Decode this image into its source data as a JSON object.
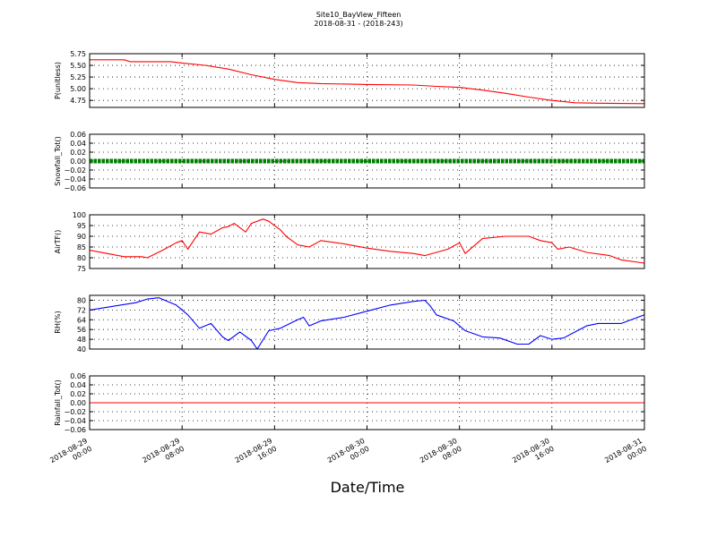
{
  "title": "Site10_BayView_Fifteen",
  "subtitle": "2018-08-31 - (2018-243)",
  "xlabel": "Date/Time",
  "x_ticks": [
    {
      "line1": "2018-08-29",
      "line2": "00:00"
    },
    {
      "line1": "2018-08-29",
      "line2": "08:00"
    },
    {
      "line1": "2018-08-29",
      "line2": "16:00"
    },
    {
      "line1": "2018-08-30",
      "line2": "00:00"
    },
    {
      "line1": "2018-08-30",
      "line2": "08:00"
    },
    {
      "line1": "2018-08-30",
      "line2": "16:00"
    },
    {
      "line1": "2018-08-31",
      "line2": "00:00"
    }
  ],
  "chart_data": [
    {
      "type": "line",
      "ylabel": "P(unitless)",
      "color": "#ff0000",
      "xlim": [
        "2018-08-29 00:00",
        "2018-08-31 00:00"
      ],
      "ylim": [
        4.6,
        5.75
      ],
      "yticks": [
        "5.75",
        "5.50",
        "5.25",
        "5.00",
        "4.75"
      ],
      "ytick_values": [
        5.75,
        5.5,
        5.25,
        5.0,
        4.75
      ],
      "grid": true,
      "series": [
        {
          "x": [
            "2018-08-29 00:00",
            "2018-08-29 03:00",
            "2018-08-29 03:30",
            "2018-08-29 07:00",
            "2018-08-29 08:00",
            "2018-08-29 10:00",
            "2018-08-29 12:00",
            "2018-08-29 14:00",
            "2018-08-29 16:00",
            "2018-08-29 18:00",
            "2018-08-29 20:00",
            "2018-08-30 00:00",
            "2018-08-30 04:00",
            "2018-08-30 06:00",
            "2018-08-30 08:00",
            "2018-08-30 10:00",
            "2018-08-30 12:00",
            "2018-08-30 14:00",
            "2018-08-30 16:00",
            "2018-08-30 18:00",
            "2018-08-30 20:00",
            "2018-08-31 00:00"
          ],
          "y": [
            5.62,
            5.62,
            5.58,
            5.58,
            5.55,
            5.5,
            5.42,
            5.3,
            5.2,
            5.13,
            5.11,
            5.09,
            5.08,
            5.05,
            5.03,
            4.97,
            4.9,
            4.82,
            4.75,
            4.7,
            4.69,
            4.68
          ]
        }
      ]
    },
    {
      "type": "line",
      "ylabel": "Snowfall_Tot()",
      "color": "#007f00",
      "xlim": [
        "2018-08-29 00:00",
        "2018-08-31 00:00"
      ],
      "ylim": [
        -0.06,
        0.06
      ],
      "yticks": [
        "0.06",
        "0.04",
        "0.02",
        "0.00",
        "−0.02",
        "−0.04",
        "−0.06"
      ],
      "ytick_values": [
        0.06,
        0.04,
        0.02,
        0.0,
        -0.02,
        -0.04,
        -0.06
      ],
      "grid": true,
      "marker": "dots",
      "series": [
        {
          "x": [
            "2018-08-29 00:00",
            "2018-08-31 00:00"
          ],
          "y": [
            0.0,
            0.0
          ]
        }
      ]
    },
    {
      "type": "line",
      "ylabel": "AirTF()",
      "color": "#ff0000",
      "xlim": [
        "2018-08-29 00:00",
        "2018-08-31 00:00"
      ],
      "ylim": [
        75,
        100
      ],
      "yticks": [
        "100",
        "95",
        "90",
        "85",
        "80",
        "75"
      ],
      "ytick_values": [
        100,
        95,
        90,
        85,
        80,
        75
      ],
      "grid": true,
      "series": [
        {
          "x": [
            "2018-08-29 00:00",
            "2018-08-29 01:30",
            "2018-08-29 03:00",
            "2018-08-29 04:30",
            "2018-08-29 05:00",
            "2018-08-29 06:30",
            "2018-08-29 07:30",
            "2018-08-29 08:00",
            "2018-08-29 08:30",
            "2018-08-29 09:30",
            "2018-08-29 10:30",
            "2018-08-29 11:30",
            "2018-08-29 12:00",
            "2018-08-29 12:30",
            "2018-08-29 13:30",
            "2018-08-29 14:00",
            "2018-08-29 15:00",
            "2018-08-29 15:30",
            "2018-08-29 16:30",
            "2018-08-29 17:00",
            "2018-08-29 17:30",
            "2018-08-29 18:00",
            "2018-08-29 19:00",
            "2018-08-29 20:00",
            "2018-08-29 22:00",
            "2018-08-30 00:00",
            "2018-08-30 02:00",
            "2018-08-30 04:00",
            "2018-08-30 05:00",
            "2018-08-30 07:00",
            "2018-08-30 08:00",
            "2018-08-30 08:30",
            "2018-08-30 10:00",
            "2018-08-30 12:00",
            "2018-08-30 14:00",
            "2018-08-30 15:00",
            "2018-08-30 16:00",
            "2018-08-30 16:30",
            "2018-08-30 17:30",
            "2018-08-30 19:00",
            "2018-08-30 21:00",
            "2018-08-30 22:00",
            "2018-08-31 00:00"
          ],
          "y": [
            83.5,
            82,
            80.5,
            80.5,
            80,
            84,
            87,
            88,
            84,
            92,
            91,
            94,
            94.5,
            96,
            92,
            96,
            98,
            97,
            93,
            90,
            88,
            86,
            85,
            88,
            86.5,
            84.5,
            83,
            82,
            81,
            84,
            87,
            82,
            89,
            90,
            90,
            88,
            87,
            84,
            85,
            82.5,
            81,
            79,
            77.5
          ]
        }
      ]
    },
    {
      "type": "line",
      "ylabel": "RH(%)",
      "color": "#0000ff",
      "xlim": [
        "2018-08-29 00:00",
        "2018-08-31 00:00"
      ],
      "ylim": [
        40,
        84
      ],
      "yticks": [
        "80",
        "72",
        "64",
        "56",
        "48",
        "40"
      ],
      "ytick_values": [
        80,
        72,
        64,
        56,
        48,
        40
      ],
      "grid": true,
      "series": [
        {
          "x": [
            "2018-08-29 00:00",
            "2018-08-29 02:00",
            "2018-08-29 04:00",
            "2018-08-29 05:00",
            "2018-08-29 06:00",
            "2018-08-29 07:30",
            "2018-08-29 08:30",
            "2018-08-29 09:30",
            "2018-08-29 10:30",
            "2018-08-29 11:30",
            "2018-08-29 12:00",
            "2018-08-29 13:00",
            "2018-08-29 14:00",
            "2018-08-29 14:30",
            "2018-08-29 15:30",
            "2018-08-29 16:30",
            "2018-08-29 18:00",
            "2018-08-29 18:30",
            "2018-08-29 19:00",
            "2018-08-29 20:00",
            "2018-08-29 22:00",
            "2018-08-30 00:00",
            "2018-08-30 02:00",
            "2018-08-30 04:00",
            "2018-08-30 05:00",
            "2018-08-30 05:30",
            "2018-08-30 06:00",
            "2018-08-30 07:30",
            "2018-08-30 08:30",
            "2018-08-30 10:00",
            "2018-08-30 11:30",
            "2018-08-30 13:00",
            "2018-08-30 14:00",
            "2018-08-30 15:00",
            "2018-08-30 16:00",
            "2018-08-30 17:00",
            "2018-08-30 19:00",
            "2018-08-30 20:00",
            "2018-08-30 22:00",
            "2018-08-31 00:00"
          ],
          "y": [
            72,
            75,
            78,
            81,
            82,
            76,
            68,
            57,
            61,
            50,
            47,
            54,
            47,
            40,
            55,
            57,
            64,
            66,
            59,
            63,
            66,
            71,
            76,
            79,
            80,
            75,
            68,
            63,
            55,
            50,
            49,
            44,
            44,
            51,
            48,
            49,
            59,
            61,
            61,
            68
          ]
        }
      ]
    },
    {
      "type": "line",
      "ylabel": "Rainfall_Tot()",
      "color": "#ff0000",
      "xlim": [
        "2018-08-29 00:00",
        "2018-08-31 00:00"
      ],
      "ylim": [
        -0.06,
        0.06
      ],
      "yticks": [
        "0.06",
        "0.04",
        "0.02",
        "0.00",
        "−0.02",
        "−0.04",
        "−0.06"
      ],
      "ytick_values": [
        0.06,
        0.04,
        0.02,
        0.0,
        -0.02,
        -0.04,
        -0.06
      ],
      "grid": true,
      "series": [
        {
          "x": [
            "2018-08-29 00:00",
            "2018-08-31 00:00"
          ],
          "y": [
            0.0,
            0.0
          ]
        }
      ]
    }
  ]
}
